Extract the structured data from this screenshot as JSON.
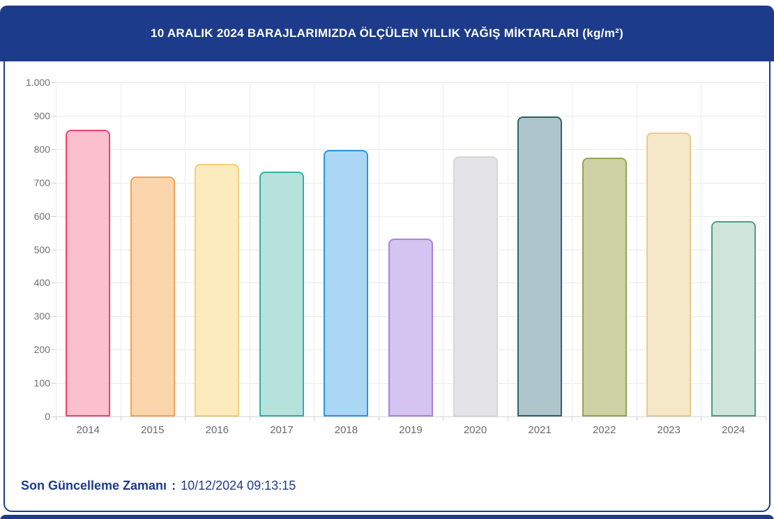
{
  "header": {
    "title": "10 ARALIK 2024 BARAJLARIMIZDA ÖLÇÜLEN YILLIK YAĞIŞ MİKTARLARI (kg/m²)"
  },
  "footer": {
    "label": "Son Güncelleme Zamanı",
    "separator": ":",
    "timestamp": "10/12/2024 09:13:15"
  },
  "colors": {
    "accent_navy": "#1d3b8b",
    "grid": "#eaeaea",
    "axis": "#cfcfcf",
    "tick_text": "#6a6a6a",
    "footer_text": "#1d3b8b",
    "card_background": "#ffffff"
  },
  "chart_data": {
    "type": "bar",
    "title": "10 ARALIK 2024 BARAJLARIMIZDA ÖLÇÜLEN YILLIK YAĞIŞ MİKTARLARI (kg/m²)",
    "categories": [
      "2014",
      "2015",
      "2016",
      "2017",
      "2018",
      "2019",
      "2020",
      "2021",
      "2022",
      "2023",
      "2024"
    ],
    "values": [
      858,
      718,
      756,
      733,
      797,
      532,
      778,
      898,
      774,
      850,
      585
    ],
    "ylim": [
      0,
      1000
    ],
    "ytick_step": 100,
    "ytick_labels": [
      "0",
      "100",
      "200",
      "300",
      "400",
      "500",
      "600",
      "700",
      "800",
      "900",
      "1.000"
    ],
    "grid": true,
    "legend": "none",
    "bar_styles": [
      {
        "fill": "#fbc0ce",
        "border": "#f0426b"
      },
      {
        "fill": "#fbd6ad",
        "border": "#f2a254"
      },
      {
        "fill": "#fcebbc",
        "border": "#f5ce76"
      },
      {
        "fill": "#b7e2dc",
        "border": "#35afa4"
      },
      {
        "fill": "#abd6f4",
        "border": "#2d95db"
      },
      {
        "fill": "#d5c3f1",
        "border": "#a982e3"
      },
      {
        "fill": "#e4e4e7",
        "border": "#d7d7db"
      },
      {
        "fill": "#aec6cb",
        "border": "#30626e"
      },
      {
        "fill": "#ccd2a4",
        "border": "#97a355"
      },
      {
        "fill": "#f4e8c9",
        "border": "#e7cb8d"
      },
      {
        "fill": "#cfe5db",
        "border": "#4e9d86"
      }
    ]
  }
}
